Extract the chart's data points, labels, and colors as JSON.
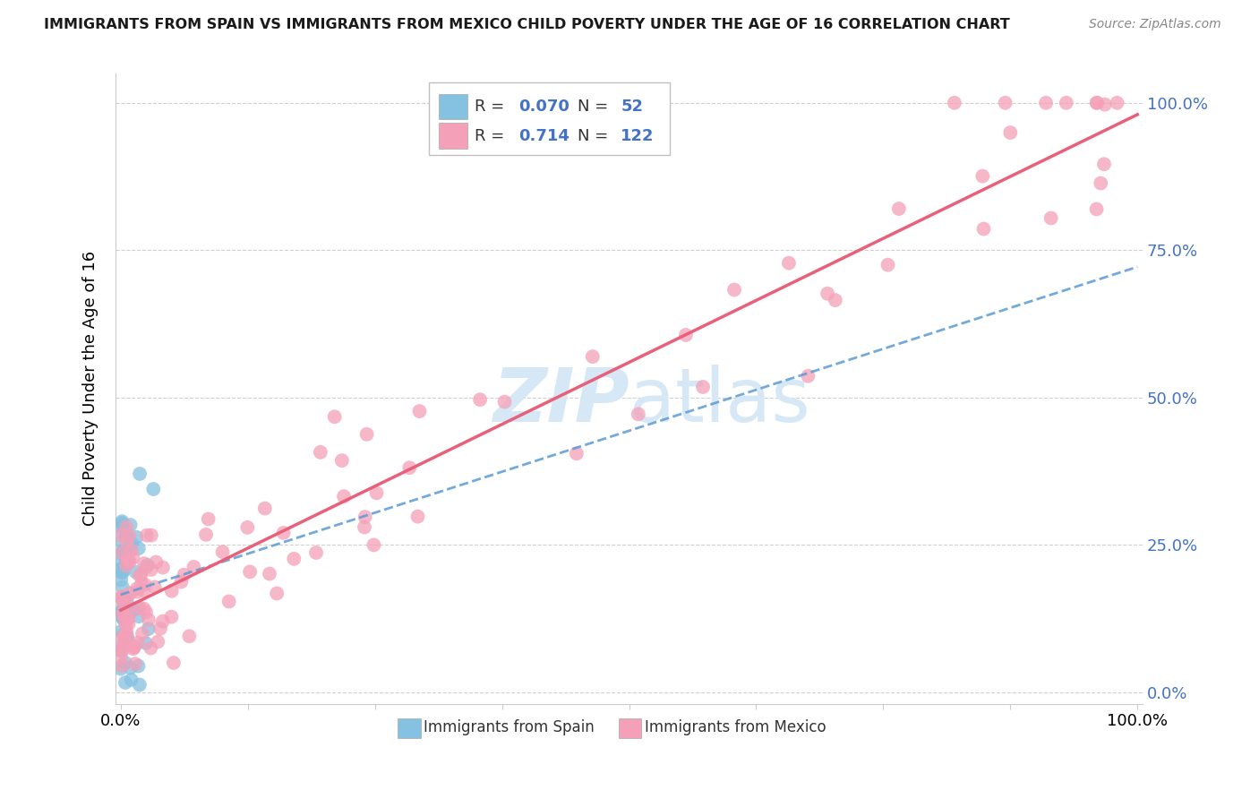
{
  "title": "IMMIGRANTS FROM SPAIN VS IMMIGRANTS FROM MEXICO CHILD POVERTY UNDER THE AGE OF 16 CORRELATION CHART",
  "source": "Source: ZipAtlas.com",
  "ylabel": "Child Poverty Under the Age of 16",
  "legend_label1": "Immigrants from Spain",
  "legend_label2": "Immigrants from Mexico",
  "R_spain": 0.07,
  "N_spain": 52,
  "R_mexico": 0.714,
  "N_mexico": 122,
  "color_spain": "#85c1e0",
  "color_mexico": "#f4a0b8",
  "color_spain_line": "#5b9bd5",
  "color_mexico_line": "#e8607a",
  "watermark_color": "#d6e8f5",
  "grid_color": "#d0d0d0",
  "right_tick_color": "#4472c4",
  "title_color": "#1a1a1a",
  "source_color": "#888888"
}
